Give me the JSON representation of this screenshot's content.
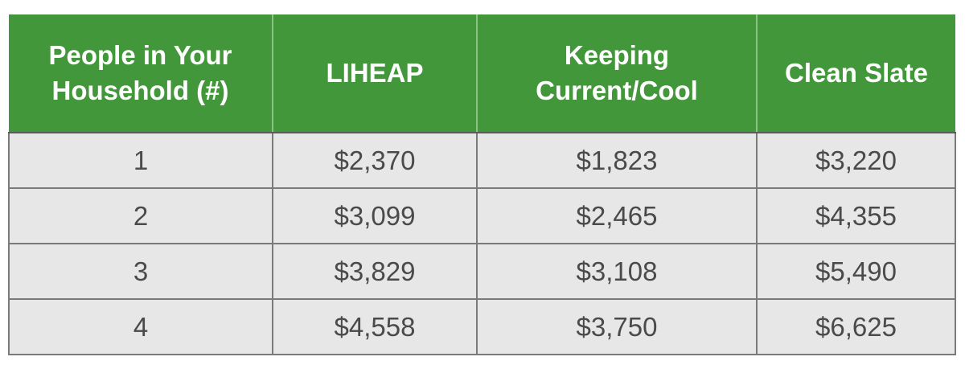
{
  "table": {
    "headers": [
      {
        "line1": "People in Your",
        "line2": "Household (#)"
      },
      {
        "line1": "LIHEAP",
        "line2": ""
      },
      {
        "line1": "Keeping",
        "line2": "Current/Cool"
      },
      {
        "line1": "Clean Slate",
        "line2": ""
      }
    ],
    "rows": [
      [
        "1",
        "$2,370",
        "$1,823",
        "$3,220"
      ],
      [
        "2",
        "$3,099",
        "$2,465",
        "$4,355"
      ],
      [
        "3",
        "$3,829",
        "$3,108",
        "$5,490"
      ],
      [
        "4",
        "$4,558",
        "$3,750",
        "$6,625"
      ]
    ],
    "header_color": "#43973b",
    "row_color": "#e7e7e8"
  }
}
